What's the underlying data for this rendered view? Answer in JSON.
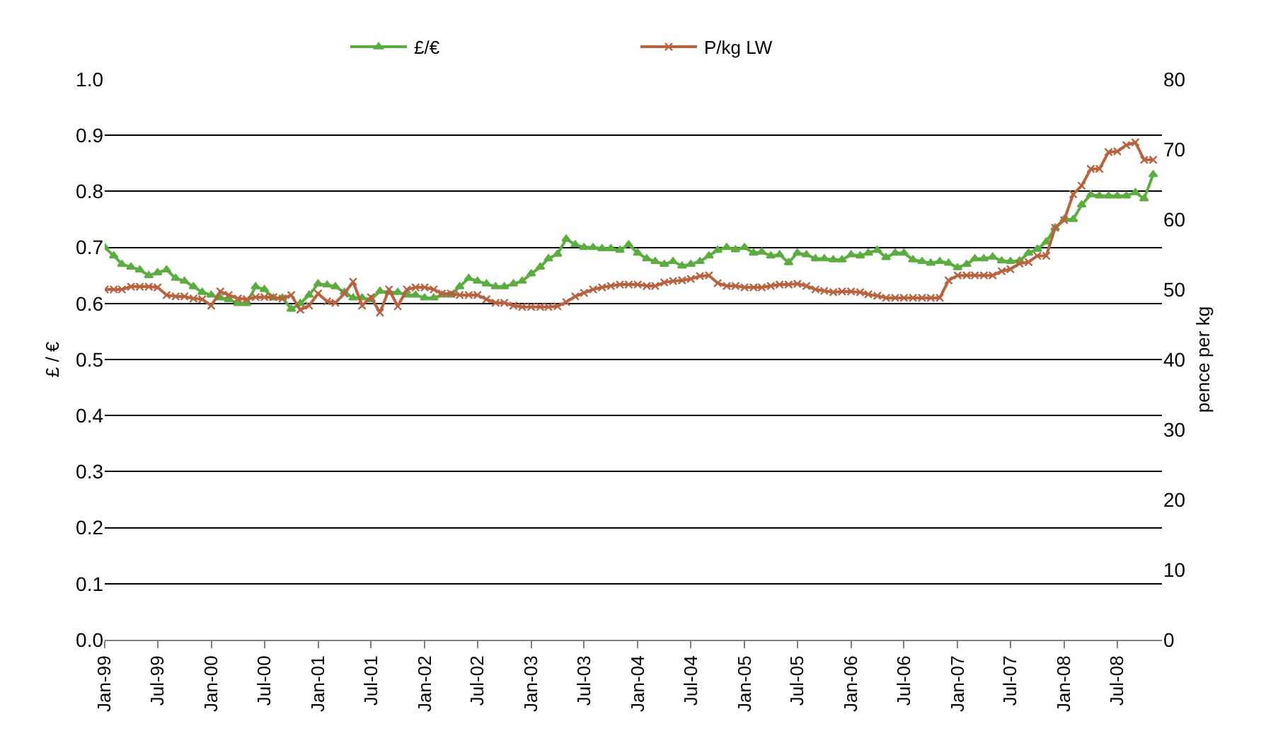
{
  "chart_data": {
    "type": "line",
    "ylabel": "£ / €",
    "y2label": "pence per kg",
    "x": [
      "1999-01",
      "1999-02",
      "1999-03",
      "1999-04",
      "1999-05",
      "1999-06",
      "1999-07",
      "1999-08",
      "1999-09",
      "1999-10",
      "1999-11",
      "1999-12",
      "2000-01",
      "2000-02",
      "2000-03",
      "2000-04",
      "2000-05",
      "2000-06",
      "2000-07",
      "2000-08",
      "2000-09",
      "2000-10",
      "2000-11",
      "2000-12",
      "2001-01",
      "2001-02",
      "2001-03",
      "2001-04",
      "2001-05",
      "2001-06",
      "2001-07",
      "2001-08",
      "2001-09",
      "2001-10",
      "2001-11",
      "2001-12",
      "2002-01",
      "2002-02",
      "2002-03",
      "2002-04",
      "2002-05",
      "2002-06",
      "2002-07",
      "2002-08",
      "2002-09",
      "2002-10",
      "2002-11",
      "2002-12",
      "2003-01",
      "2003-02",
      "2003-03",
      "2003-04",
      "2003-05",
      "2003-06",
      "2003-07",
      "2003-08",
      "2003-09",
      "2003-10",
      "2003-11",
      "2003-12",
      "2004-01",
      "2004-02",
      "2004-03",
      "2004-04",
      "2004-05",
      "2004-06",
      "2004-07",
      "2004-08",
      "2004-09",
      "2004-10",
      "2004-11",
      "2004-12",
      "2005-01",
      "2005-02",
      "2005-03",
      "2005-04",
      "2005-05",
      "2005-06",
      "2005-07",
      "2005-08",
      "2005-09",
      "2005-10",
      "2005-11",
      "2005-12",
      "2006-01",
      "2006-02",
      "2006-03",
      "2006-04",
      "2006-05",
      "2006-06",
      "2006-07",
      "2006-08",
      "2006-09",
      "2006-10",
      "2006-11",
      "2006-12",
      "2007-01",
      "2007-02",
      "2007-03",
      "2007-04",
      "2007-05",
      "2007-06",
      "2007-07",
      "2007-08",
      "2007-09",
      "2007-10",
      "2007-11",
      "2007-12",
      "2008-01",
      "2008-02",
      "2008-03",
      "2008-04",
      "2008-05",
      "2008-06",
      "2008-07",
      "2008-08",
      "2008-09",
      "2008-10",
      "2008-11"
    ],
    "series": [
      {
        "name": "£/€",
        "color": "#5bad3f",
        "marker": "triangle",
        "values": [
          0.7,
          0.685,
          0.67,
          0.665,
          0.66,
          0.65,
          0.655,
          0.66,
          0.645,
          0.64,
          0.63,
          0.62,
          0.615,
          0.61,
          0.607,
          0.6,
          0.6,
          0.63,
          0.625,
          0.61,
          0.61,
          0.59,
          0.6,
          0.615,
          0.635,
          0.633,
          0.63,
          0.62,
          0.61,
          0.61,
          0.607,
          0.622,
          0.62,
          0.62,
          0.615,
          0.615,
          0.61,
          0.61,
          0.615,
          0.615,
          0.63,
          0.645,
          0.64,
          0.635,
          0.63,
          0.63,
          0.635,
          0.64,
          0.653,
          0.665,
          0.68,
          0.688,
          0.715,
          0.705,
          0.7,
          0.7,
          0.698,
          0.698,
          0.695,
          0.705,
          0.69,
          0.68,
          0.675,
          0.67,
          0.675,
          0.667,
          0.67,
          0.675,
          0.685,
          0.695,
          0.7,
          0.696,
          0.7,
          0.69,
          0.692,
          0.685,
          0.687,
          0.673,
          0.69,
          0.687,
          0.68,
          0.68,
          0.678,
          0.678,
          0.687,
          0.685,
          0.69,
          0.695,
          0.682,
          0.69,
          0.69,
          0.678,
          0.675,
          0.672,
          0.675,
          0.672,
          0.664,
          0.67,
          0.68,
          0.68,
          0.683,
          0.676,
          0.675,
          0.676,
          0.69,
          0.697,
          0.71,
          0.735,
          0.75,
          0.75,
          0.776,
          0.794,
          0.792,
          0.792,
          0.792,
          0.792,
          0.798,
          0.787,
          0.83
        ]
      },
      {
        "name": "P/kg LW",
        "color": "#b86240",
        "marker": "cross",
        "axis": "y2",
        "values": [
          50.0,
          50.0,
          50.0,
          50.4,
          50.4,
          50.4,
          50.3,
          49.2,
          49.0,
          49.0,
          48.7,
          48.6,
          47.7,
          49.7,
          49.2,
          48.7,
          48.6,
          48.9,
          48.9,
          48.9,
          48.7,
          49.2,
          47.1,
          47.7,
          49.4,
          48.3,
          48.1,
          49.4,
          51.1,
          47.7,
          48.9,
          46.7,
          50.0,
          47.6,
          50.0,
          50.3,
          50.3,
          50.0,
          49.4,
          49.4,
          49.2,
          49.2,
          49.2,
          48.6,
          48.1,
          48.1,
          47.7,
          47.5,
          47.5,
          47.5,
          47.5,
          47.6,
          48.2,
          49.0,
          49.5,
          50.0,
          50.3,
          50.5,
          50.7,
          50.7,
          50.7,
          50.5,
          50.5,
          51.0,
          51.2,
          51.3,
          51.5,
          51.9,
          52.0,
          50.9,
          50.5,
          50.5,
          50.3,
          50.3,
          50.3,
          50.5,
          50.7,
          50.7,
          50.8,
          50.5,
          50.0,
          49.8,
          49.6,
          49.7,
          49.7,
          49.6,
          49.3,
          49.1,
          48.8,
          48.8,
          48.8,
          48.8,
          48.8,
          48.8,
          48.8,
          51.3,
          52.0,
          52.0,
          52.0,
          52.0,
          52.0,
          52.6,
          52.9,
          53.7,
          53.9,
          54.8,
          54.8,
          58.8,
          59.9,
          63.6,
          64.8,
          67.2,
          67.2,
          69.6,
          69.7,
          70.6,
          71.0,
          68.5,
          68.5
        ]
      }
    ],
    "xlim": [
      "1999-01",
      "2008-12"
    ],
    "xticks": [
      {
        "value": "1999-01",
        "label": "Jan-99"
      },
      {
        "value": "1999-07",
        "label": "Jul-99"
      },
      {
        "value": "2000-01",
        "label": "Jan-00"
      },
      {
        "value": "2000-07",
        "label": "Jul-00"
      },
      {
        "value": "2001-01",
        "label": "Jan-01"
      },
      {
        "value": "2001-07",
        "label": "Jul-01"
      },
      {
        "value": "2002-01",
        "label": "Jan-02"
      },
      {
        "value": "2002-07",
        "label": "Jul-02"
      },
      {
        "value": "2003-01",
        "label": "Jan-03"
      },
      {
        "value": "2003-07",
        "label": "Jul-03"
      },
      {
        "value": "2004-01",
        "label": "Jan-04"
      },
      {
        "value": "2004-07",
        "label": "Jul-04"
      },
      {
        "value": "2005-01",
        "label": "Jan-05"
      },
      {
        "value": "2005-07",
        "label": "Jul-05"
      },
      {
        "value": "2006-01",
        "label": "Jan-06"
      },
      {
        "value": "2006-07",
        "label": "Jul-06"
      },
      {
        "value": "2007-01",
        "label": "Jan-07"
      },
      {
        "value": "2007-07",
        "label": "Jul-07"
      },
      {
        "value": "2008-01",
        "label": "Jan-08"
      },
      {
        "value": "2008-07",
        "label": "Jul-08"
      }
    ],
    "ylim": [
      0,
      1
    ],
    "yticks": [
      {
        "value": 0,
        "label": "0.0"
      },
      0.1,
      0.2,
      0.3,
      0.4,
      0.5,
      0.6,
      0.7,
      0.8,
      0.9,
      {
        "value": 1,
        "label": "1.0"
      }
    ],
    "y2lim": [
      0,
      80
    ],
    "y2ticks": [
      0,
      10,
      20,
      30,
      40,
      50,
      60,
      70,
      80
    ],
    "grid": "y",
    "legend": "top",
    "line_style": "solid"
  }
}
